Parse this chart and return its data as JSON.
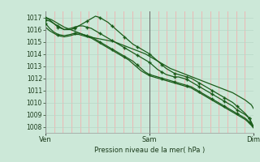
{
  "xlabel": "Pression niveau de la mer( hPa )",
  "bg_color": "#cce8d8",
  "plot_bg_color": "#cce8d8",
  "grid_color_v": "#f0b0b0",
  "grid_color_h": "#b8d8c8",
  "line_color": "#1a5c1a",
  "ylim": [
    1007.5,
    1017.5
  ],
  "yticks": [
    1008,
    1009,
    1010,
    1011,
    1012,
    1013,
    1014,
    1015,
    1016,
    1017
  ],
  "xtick_labels": [
    "Ven",
    "Sam",
    "Dim"
  ],
  "xtick_positions": [
    0,
    0.5,
    1.0
  ],
  "vgrid_count": 24,
  "line1_x": [
    0.0,
    0.03,
    0.06,
    0.09,
    0.12,
    0.15,
    0.18,
    0.21,
    0.24,
    0.27,
    0.3,
    0.33,
    0.36,
    0.39,
    0.42,
    0.45,
    0.48,
    0.51,
    0.54,
    0.57,
    0.6,
    0.63,
    0.66,
    0.69,
    0.72,
    0.75,
    0.78,
    0.81,
    0.84,
    0.87,
    0.9,
    0.93,
    0.96,
    0.99,
    1.0
  ],
  "line1": [
    1017.0,
    1016.8,
    1016.5,
    1016.2,
    1016.0,
    1015.8,
    1015.6,
    1015.4,
    1015.3,
    1015.2,
    1015.1,
    1015.0,
    1014.8,
    1014.6,
    1014.4,
    1014.2,
    1014.0,
    1013.7,
    1013.4,
    1013.1,
    1012.8,
    1012.6,
    1012.4,
    1012.2,
    1012.0,
    1011.8,
    1011.6,
    1011.4,
    1011.2,
    1011.0,
    1010.8,
    1010.5,
    1010.2,
    1009.8,
    1009.5
  ],
  "line2_x": [
    0.0,
    0.02,
    0.04,
    0.06,
    0.09,
    0.12,
    0.14,
    0.16,
    0.18,
    0.2,
    0.22,
    0.24,
    0.26,
    0.28,
    0.3,
    0.32,
    0.34,
    0.36,
    0.38,
    0.4,
    0.42,
    0.44,
    0.46,
    0.48,
    0.5,
    0.52,
    0.54,
    0.56,
    0.58,
    0.6,
    0.62,
    0.64,
    0.66,
    0.68,
    0.7,
    0.72,
    0.74,
    0.76,
    0.78,
    0.8,
    0.82,
    0.84,
    0.86,
    0.88,
    0.9,
    0.92,
    0.94,
    0.96,
    0.98,
    1.0
  ],
  "line2": [
    1016.8,
    1016.7,
    1016.5,
    1016.3,
    1016.0,
    1016.0,
    1016.1,
    1016.3,
    1016.5,
    1016.7,
    1016.9,
    1017.1,
    1017.0,
    1016.8,
    1016.6,
    1016.3,
    1016.0,
    1015.7,
    1015.4,
    1015.1,
    1014.8,
    1014.6,
    1014.4,
    1014.2,
    1014.0,
    1013.7,
    1013.4,
    1013.1,
    1012.8,
    1012.6,
    1012.4,
    1012.3,
    1012.2,
    1012.1,
    1012.0,
    1011.8,
    1011.6,
    1011.4,
    1011.2,
    1011.0,
    1010.8,
    1010.6,
    1010.4,
    1010.2,
    1010.0,
    1009.7,
    1009.4,
    1009.1,
    1008.7,
    1008.0
  ],
  "line3_x": [
    0.0,
    0.02,
    0.04,
    0.06,
    0.09,
    0.12,
    0.14,
    0.16,
    0.18,
    0.2,
    0.22,
    0.24,
    0.26,
    0.28,
    0.3,
    0.32,
    0.34,
    0.36,
    0.38,
    0.4,
    0.42,
    0.44,
    0.46,
    0.48,
    0.5,
    0.52,
    0.54,
    0.56,
    0.58,
    0.6,
    0.62,
    0.64,
    0.66,
    0.68,
    0.7,
    0.72,
    0.74,
    0.76,
    0.78,
    0.8,
    0.82,
    0.84,
    0.86,
    0.88,
    0.9,
    0.92,
    0.94,
    0.96,
    0.98,
    1.0
  ],
  "line3": [
    1017.0,
    1016.8,
    1016.5,
    1016.2,
    1016.0,
    1016.1,
    1016.2,
    1016.3,
    1016.3,
    1016.2,
    1016.1,
    1015.9,
    1015.7,
    1015.5,
    1015.3,
    1015.1,
    1014.9,
    1014.7,
    1014.5,
    1014.3,
    1014.1,
    1013.9,
    1013.7,
    1013.5,
    1013.3,
    1013.0,
    1012.7,
    1012.5,
    1012.3,
    1012.2,
    1012.1,
    1012.1,
    1012.0,
    1011.9,
    1011.7,
    1011.5,
    1011.3,
    1011.1,
    1010.9,
    1010.7,
    1010.5,
    1010.3,
    1010.1,
    1009.9,
    1009.7,
    1009.4,
    1009.2,
    1009.0,
    1008.7,
    1008.0
  ],
  "line4_x": [
    0.0,
    0.02,
    0.04,
    0.06,
    0.09,
    0.12,
    0.14,
    0.16,
    0.18,
    0.2,
    0.22,
    0.24,
    0.26,
    0.28,
    0.3,
    0.32,
    0.34,
    0.36,
    0.38,
    0.4,
    0.42,
    0.44,
    0.46,
    0.48,
    0.5,
    0.52,
    0.54,
    0.56,
    0.58,
    0.6,
    0.62,
    0.64,
    0.66,
    0.68,
    0.7,
    0.72,
    0.74,
    0.76,
    0.78,
    0.8,
    0.82,
    0.84,
    0.86,
    0.88,
    0.9,
    0.92,
    0.94,
    0.96,
    0.98,
    1.0
  ],
  "line4": [
    1016.5,
    1016.1,
    1015.8,
    1015.6,
    1015.5,
    1015.6,
    1015.7,
    1015.7,
    1015.6,
    1015.5,
    1015.4,
    1015.2,
    1015.0,
    1014.8,
    1014.6,
    1014.4,
    1014.2,
    1014.0,
    1013.8,
    1013.6,
    1013.4,
    1013.1,
    1012.8,
    1012.5,
    1012.3,
    1012.2,
    1012.1,
    1012.0,
    1011.9,
    1011.8,
    1011.7,
    1011.6,
    1011.5,
    1011.4,
    1011.3,
    1011.1,
    1010.9,
    1010.7,
    1010.5,
    1010.3,
    1010.1,
    1009.9,
    1009.7,
    1009.5,
    1009.3,
    1009.1,
    1008.9,
    1008.7,
    1008.4,
    1008.0
  ],
  "line5_x": [
    0.0,
    0.02,
    0.04,
    0.06,
    0.09,
    0.12,
    0.14,
    0.16,
    0.18,
    0.2,
    0.22,
    0.24,
    0.26,
    0.28,
    0.3,
    0.32,
    0.34,
    0.36,
    0.38,
    0.4,
    0.42,
    0.44,
    0.46,
    0.48,
    0.5,
    0.52,
    0.54,
    0.56,
    0.58,
    0.6,
    0.62,
    0.64,
    0.66,
    0.68,
    0.7,
    0.72,
    0.74,
    0.76,
    0.78,
    0.8,
    0.82,
    0.84,
    0.86,
    0.88,
    0.9,
    0.92,
    0.94,
    0.96,
    0.98,
    1.0
  ],
  "line5": [
    1016.2,
    1015.9,
    1015.7,
    1015.5,
    1015.4,
    1015.5,
    1015.6,
    1015.6,
    1015.5,
    1015.4,
    1015.3,
    1015.1,
    1014.9,
    1014.7,
    1014.5,
    1014.3,
    1014.1,
    1013.9,
    1013.7,
    1013.5,
    1013.2,
    1012.9,
    1012.6,
    1012.4,
    1012.2,
    1012.1,
    1012.0,
    1011.9,
    1011.8,
    1011.7,
    1011.6,
    1011.5,
    1011.4,
    1011.3,
    1011.2,
    1011.0,
    1010.8,
    1010.6,
    1010.4,
    1010.2,
    1010.0,
    1009.8,
    1009.6,
    1009.4,
    1009.2,
    1009.0,
    1008.8,
    1008.6,
    1008.3,
    1007.9
  ]
}
